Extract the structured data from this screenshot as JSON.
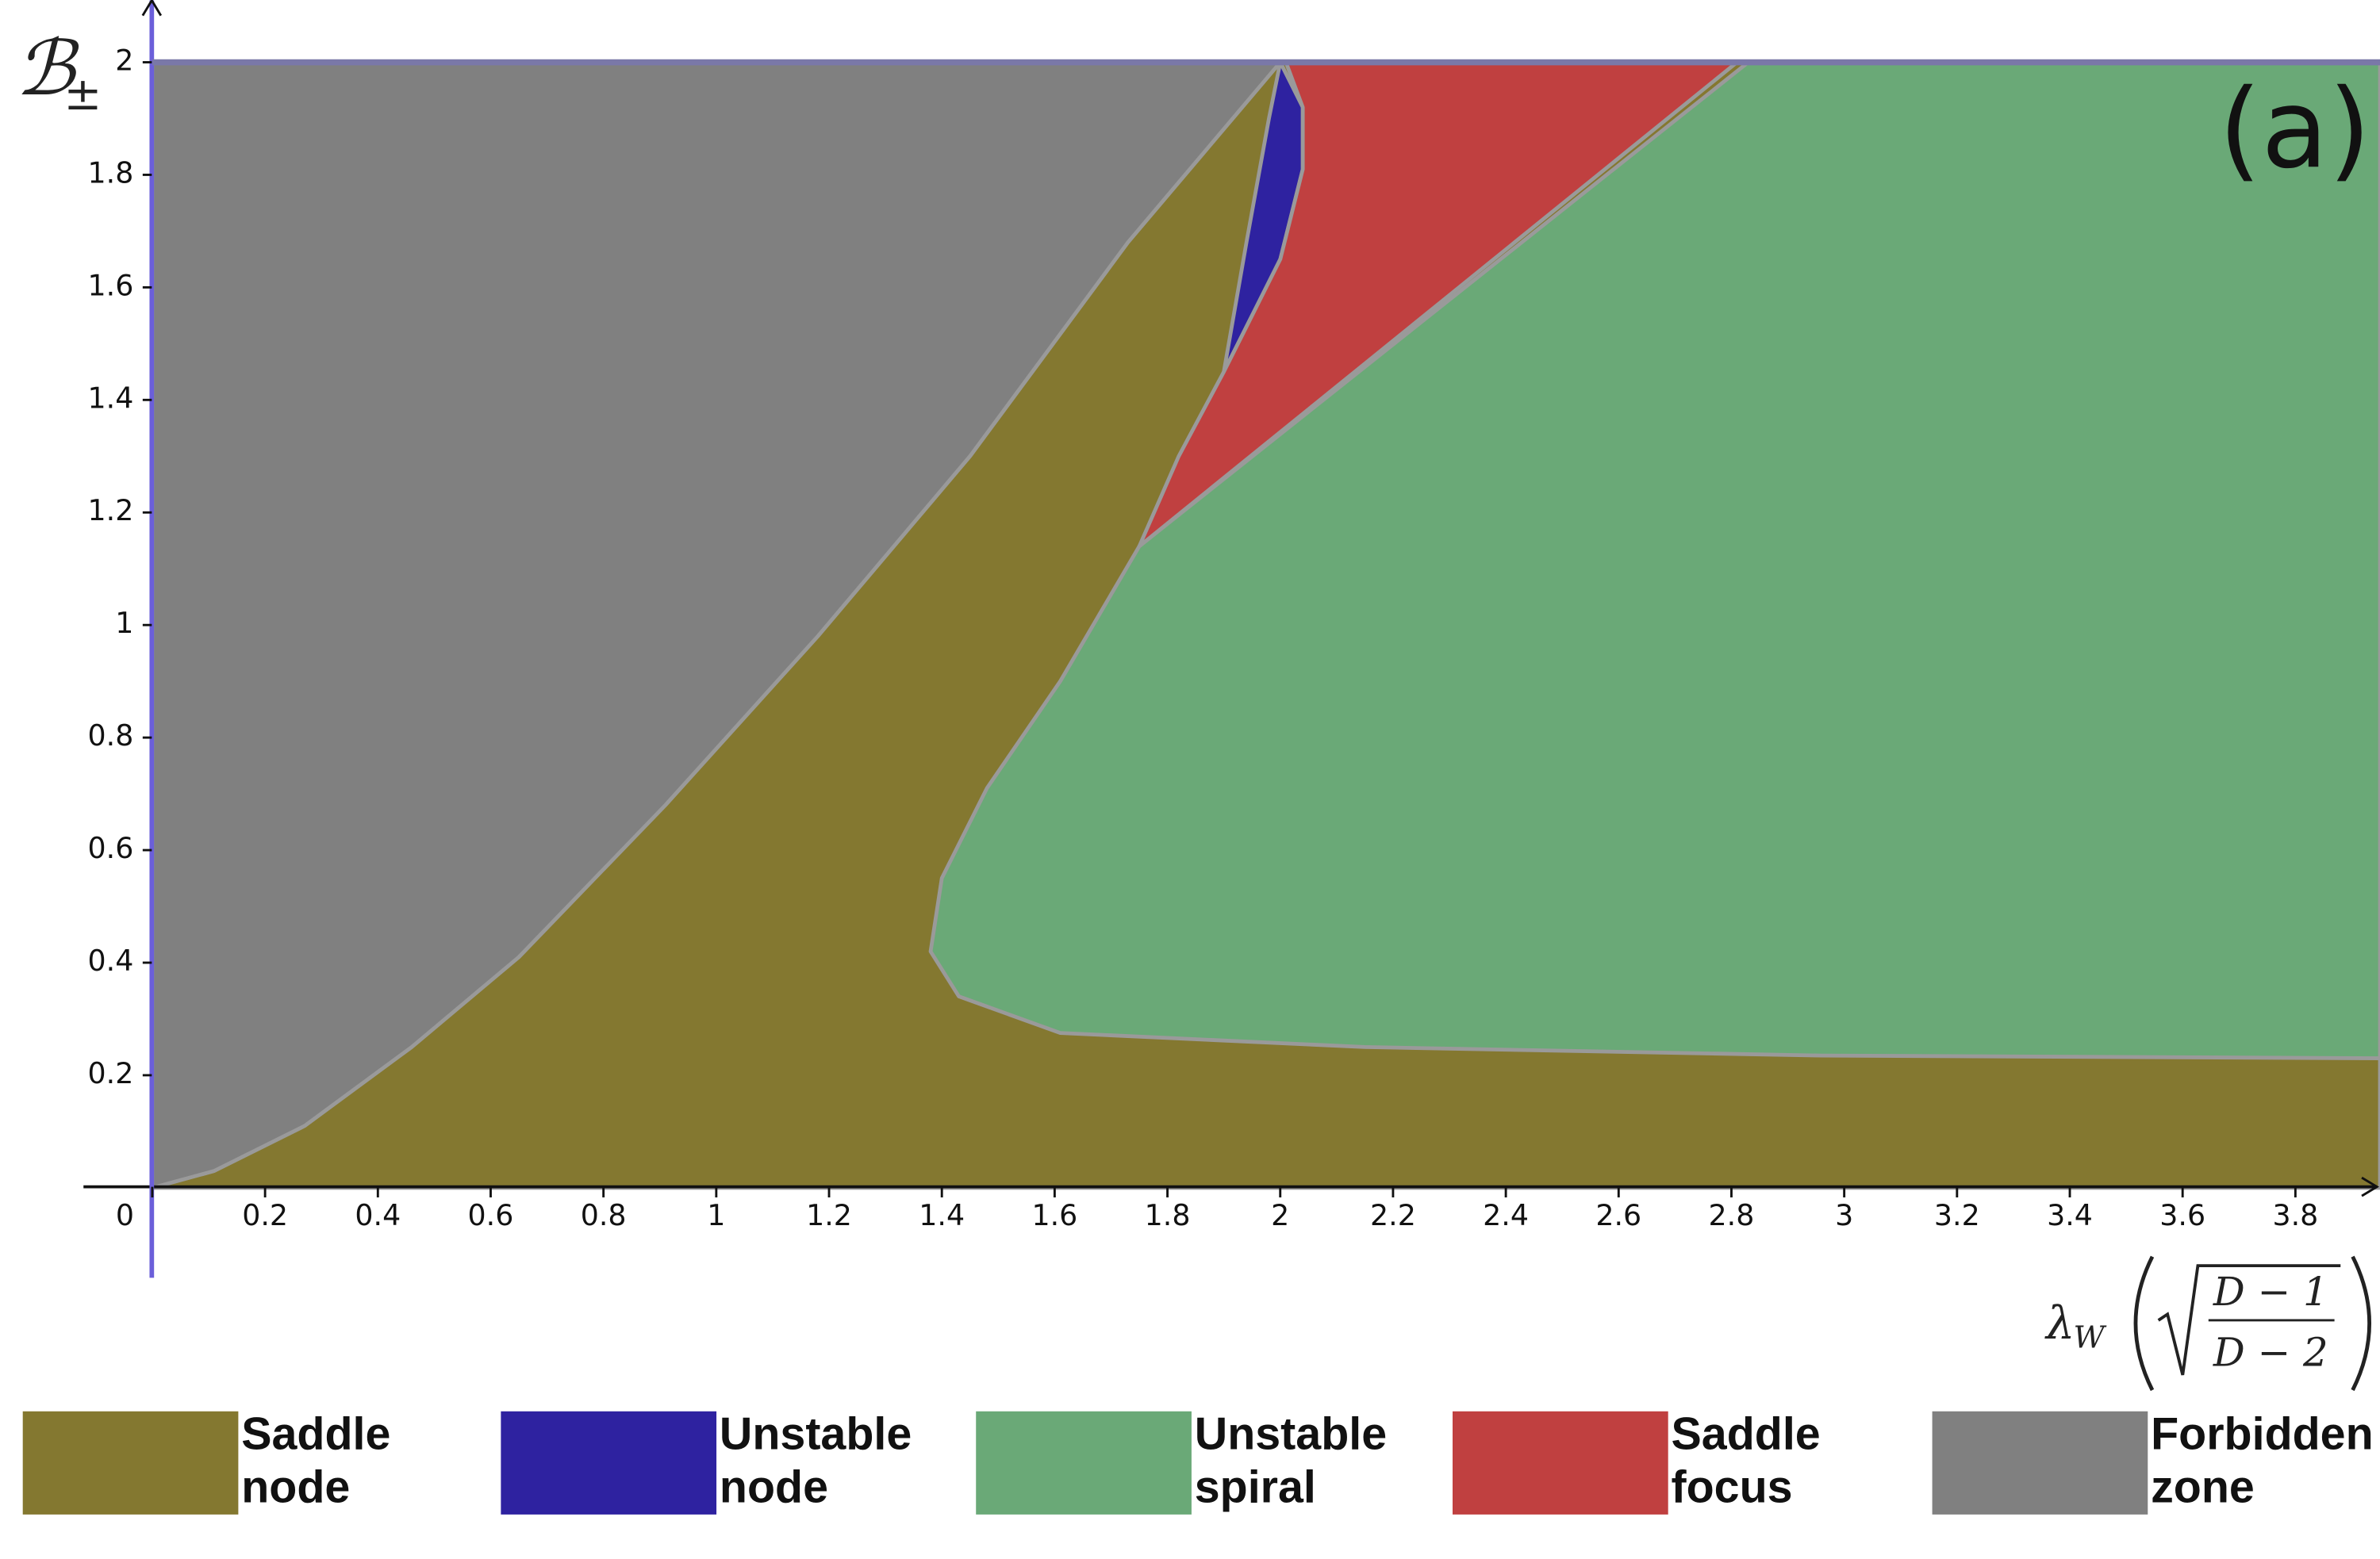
{
  "chart_data": {
    "type": "region",
    "panel_label": "(a)",
    "ylabel": {
      "symbol": "ℬ",
      "subscript": "±"
    },
    "xlabel": {
      "symbol": "λ",
      "subscript": "W",
      "numerator": "D − 1",
      "denominator": "D − 2"
    },
    "xlim": [
      -0.27,
      3.95
    ],
    "ylim": [
      -0.16,
      2.11
    ],
    "xticks": [
      0,
      0.2,
      0.4,
      0.6,
      0.8,
      1,
      1.2,
      1.4,
      1.6,
      1.8,
      2,
      2.2,
      2.4,
      2.6,
      2.8,
      3,
      3.2,
      3.4,
      3.6,
      3.8
    ],
    "yticks": [
      0.2,
      0.4,
      0.6,
      0.8,
      1,
      1.2,
      1.4,
      1.6,
      1.8,
      2
    ],
    "series": [
      {
        "name": "Saddle node",
        "color": "#847830",
        "x": [
          0,
          0.11,
          0.27,
          0.46,
          0.65,
          0.91,
          1.18,
          1.45,
          1.73,
          2,
          3.95,
          3.95
        ],
        "values": [
          0,
          0.03,
          0.11,
          0.25,
          0.41,
          0.68,
          0.98,
          1.3,
          1.68,
          2,
          2,
          0
        ]
      },
      {
        "name": "Unstable node",
        "color": "#2e22a0",
        "x": [
          2,
          1.98,
          1.94,
          1.9,
          1.94,
          2,
          2.04,
          2.04
        ],
        "values": [
          2,
          1.9,
          1.68,
          1.45,
          1.53,
          1.65,
          1.81,
          1.92
        ]
      },
      {
        "name": "Unstable spiral",
        "color": "#6aa977",
        "x": [
          2.83,
          3.95,
          3.95,
          2.96,
          2.15,
          1.61,
          1.43,
          1.38,
          1.4,
          1.48,
          1.61,
          1.75
        ],
        "values": [
          2,
          2,
          0.23,
          0.235,
          0.25,
          0.275,
          0.34,
          0.42,
          0.55,
          0.71,
          0.9,
          1.14
        ]
      },
      {
        "name": "Saddle focus",
        "color": "#c04040",
        "x": [
          2.01,
          2.81,
          1.75,
          1.82,
          1.9,
          1.94,
          2,
          2.04,
          2.04
        ],
        "values": [
          2,
          2,
          1.14,
          1.3,
          1.45,
          1.53,
          1.65,
          1.81,
          1.92
        ]
      },
      {
        "name": "Forbidden zone",
        "color": "#808080",
        "x": [
          0,
          0,
          2,
          1.73,
          1.45,
          1.18,
          0.91,
          0.65,
          0.46,
          0.27,
          0.11
        ],
        "values": [
          0,
          2,
          2,
          1.68,
          1.3,
          0.98,
          0.68,
          0.41,
          0.25,
          0.11,
          0.03
        ]
      }
    ]
  }
}
